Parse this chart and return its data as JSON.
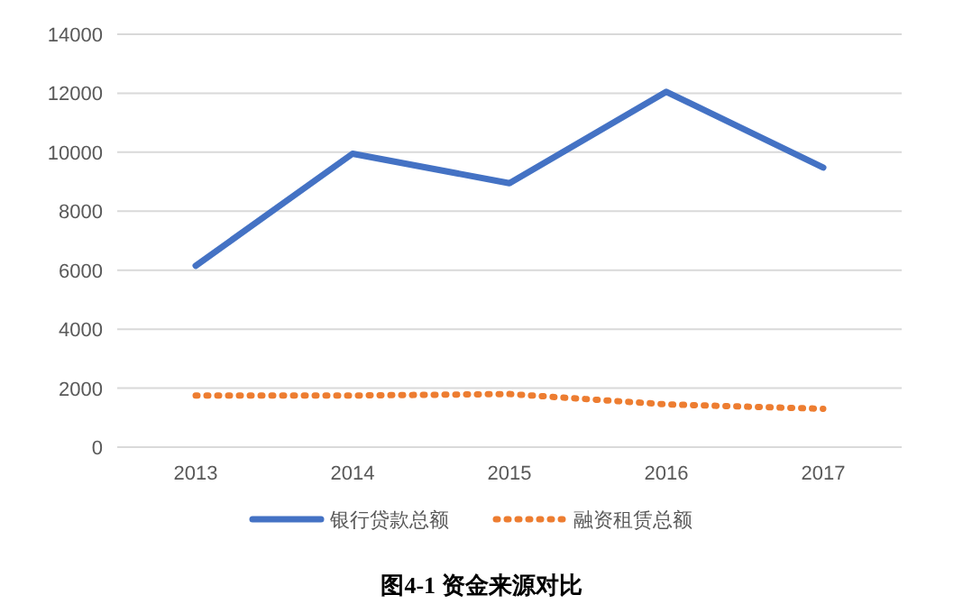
{
  "chart_data": {
    "type": "line",
    "title": "图4-1 资金来源对比",
    "categories": [
      "2013",
      "2014",
      "2015",
      "2016",
      "2017"
    ],
    "series": [
      {
        "name": "银行贷款总额",
        "color": "#4472c4",
        "line_style": "solid",
        "values": [
          6150,
          9950,
          8950,
          12050,
          9480
        ]
      },
      {
        "name": "融资租赁总额",
        "color": "#ed7d31",
        "line_style": "dotted",
        "values": [
          1750,
          1750,
          1800,
          1450,
          1300
        ]
      }
    ],
    "ylim": [
      0,
      14000
    ],
    "yticks": [
      0,
      2000,
      4000,
      6000,
      8000,
      10000,
      12000,
      14000
    ],
    "grid": "y",
    "legend": "bottom",
    "marker": "none"
  }
}
